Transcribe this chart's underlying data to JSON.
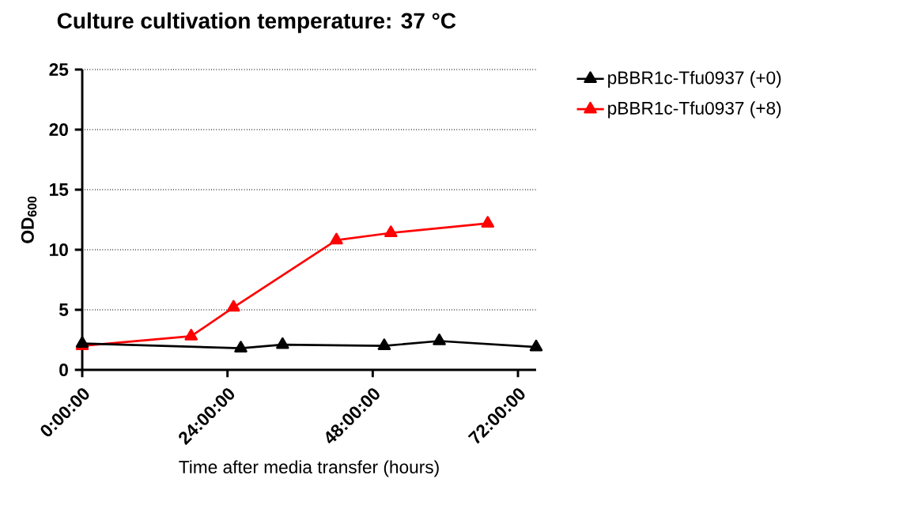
{
  "chart_data": {
    "type": "line",
    "title": "Culture cultivation temperature: 37 °C",
    "xlabel": "Time after media transfer  (hours)",
    "ylabel": "OD$_{600}$",
    "xlim": [
      0,
      75
    ],
    "xticks": [
      {
        "value": 0,
        "label": "0:00:00"
      },
      {
        "value": 24,
        "label": "24:00:00"
      },
      {
        "value": 48,
        "label": "48:00:00"
      },
      {
        "value": 72,
        "label": "72:00:00"
      }
    ],
    "ylim": [
      0,
      25
    ],
    "yticks": [
      0,
      5,
      10,
      15,
      20,
      25
    ],
    "series": [
      {
        "name": "pBBR1c-Tfu0937 (+0)",
        "color": "#000000",
        "x": [
          0,
          26.2,
          33.1,
          49.9,
          59,
          75
        ],
        "values": [
          2.2,
          1.8,
          2.1,
          2.0,
          2.4,
          1.9
        ]
      },
      {
        "name": "pBBR1c-Tfu0937 (+8)",
        "color": "#ff0000",
        "x": [
          0,
          18,
          25,
          42,
          51,
          67
        ],
        "values": [
          2.0,
          2.8,
          5.2,
          10.8,
          11.4,
          12.2
        ]
      }
    ],
    "grid": "y",
    "legend": "top right",
    "marker": "triangle",
    "line_style": "solid"
  }
}
